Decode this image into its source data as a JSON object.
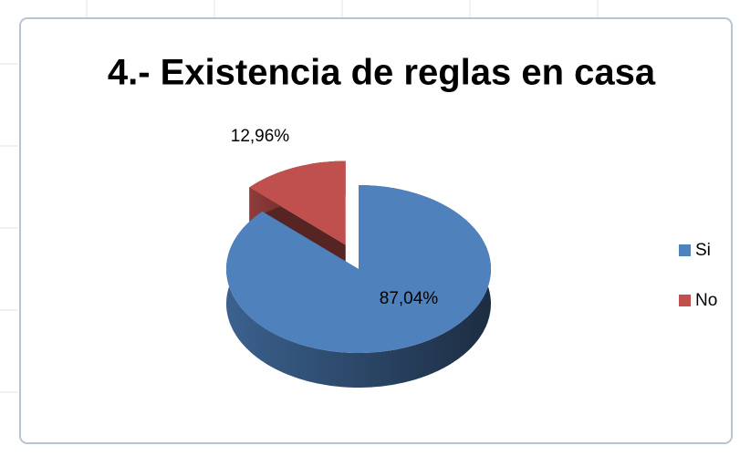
{
  "chart_data": {
    "type": "pie3d",
    "title": "4.- Existencia de reglas en casa",
    "categories": [
      "Si",
      "No"
    ],
    "values": [
      87.04,
      12.96
    ],
    "value_labels": [
      "87,04%",
      "12,96%"
    ],
    "colors": [
      "#4f81bd",
      "#c0504d"
    ],
    "legend": "right"
  }
}
